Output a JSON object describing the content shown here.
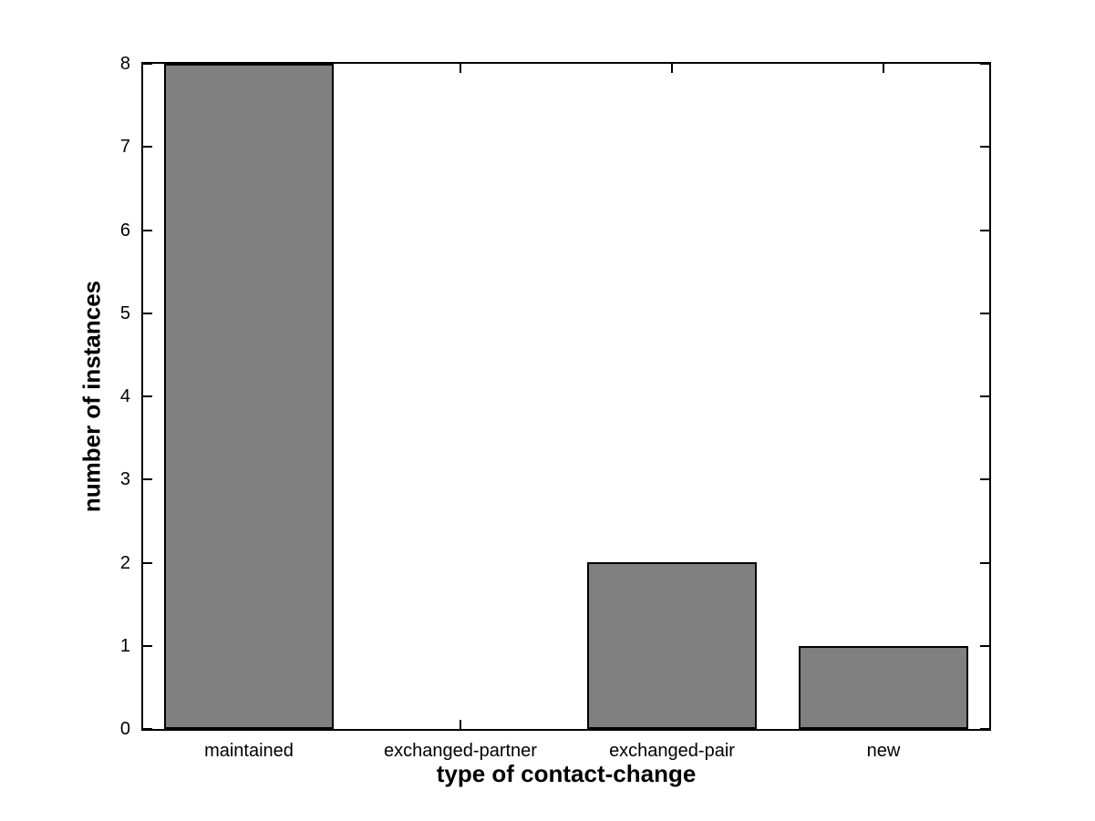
{
  "chart_data": {
    "type": "bar",
    "title": "",
    "categories": [
      "maintained",
      "exchanged-partner",
      "exchanged-pair",
      "new"
    ],
    "values": [
      8,
      0,
      2,
      1
    ],
    "xlabel": "type of contact-change",
    "ylabel": "number of instances",
    "ylim": [
      0,
      8
    ],
    "yticks": [
      0,
      1,
      2,
      3,
      4,
      5,
      6,
      7,
      8
    ],
    "ytick_labels": [
      "0",
      "1",
      "2",
      "3",
      "4",
      "5",
      "6",
      "7",
      "8"
    ],
    "bar_width_fraction": 0.8,
    "bar_fill_color": "#808080",
    "bar_edge_color": "#000000",
    "axis_color": "#000000",
    "background_color": "#ffffff",
    "grid": false,
    "legend_position": "none"
  }
}
